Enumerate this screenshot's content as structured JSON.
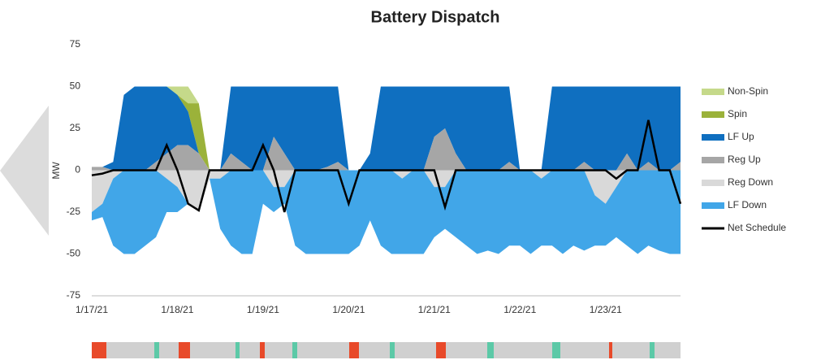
{
  "chart_data": {
    "type": "area",
    "title": "Battery Dispatch",
    "y_label": "MW",
    "categories": [
      "1/17/21",
      null,
      null,
      null,
      null,
      null,
      null,
      null,
      "1/18/21",
      null,
      null,
      null,
      null,
      null,
      null,
      null,
      "1/19/21",
      null,
      null,
      null,
      null,
      null,
      null,
      null,
      "1/20/21",
      null,
      null,
      null,
      null,
      null,
      null,
      null,
      "1/21/21",
      null,
      null,
      null,
      null,
      null,
      null,
      null,
      "1/22/21",
      null,
      null,
      null,
      null,
      null,
      null,
      null,
      "1/23/21",
      null,
      null,
      null,
      null,
      null,
      null,
      null
    ],
    "ylim": [
      -75,
      75
    ],
    "yticks": [
      -75,
      -50,
      -25,
      0,
      25,
      50,
      75
    ],
    "series": [
      {
        "name": "Non-Spin",
        "color": "#c5d98a",
        "values": [
          0,
          0,
          0,
          0,
          0,
          0,
          0,
          0,
          5,
          10,
          0,
          0,
          0,
          0,
          0,
          0,
          0,
          0,
          0,
          0,
          0,
          0,
          0,
          0,
          0,
          0,
          0,
          0,
          0,
          0,
          0,
          0,
          0,
          0,
          0,
          0,
          0,
          0,
          0,
          0,
          0,
          0,
          0,
          0,
          0,
          0,
          0,
          0,
          0,
          0,
          0,
          0,
          0,
          0,
          0,
          0
        ]
      },
      {
        "name": "Spin",
        "color": "#9bb23a",
        "values": [
          0,
          0,
          0,
          0,
          0,
          0,
          0,
          0,
          0,
          5,
          30,
          0,
          0,
          0,
          0,
          0,
          0,
          0,
          0,
          0,
          0,
          0,
          0,
          0,
          0,
          0,
          0,
          0,
          0,
          0,
          0,
          0,
          0,
          0,
          0,
          0,
          0,
          0,
          0,
          0,
          0,
          0,
          0,
          0,
          0,
          0,
          0,
          0,
          0,
          0,
          0,
          0,
          0,
          0,
          0,
          0
        ]
      },
      {
        "name": "LF Up",
        "color": "#0f6fc0",
        "values": [
          0,
          0,
          5,
          45,
          50,
          50,
          45,
          40,
          30,
          20,
          0,
          0,
          0,
          40,
          45,
          50,
          50,
          30,
          40,
          50,
          50,
          50,
          48,
          45,
          0,
          0,
          10,
          50,
          50,
          50,
          50,
          50,
          30,
          25,
          40,
          50,
          50,
          50,
          50,
          45,
          0,
          0,
          0,
          50,
          50,
          50,
          45,
          50,
          50,
          50,
          40,
          50,
          45,
          50,
          50,
          45
        ]
      },
      {
        "name": "Reg Up",
        "color": "#a6a6a6",
        "values": [
          2,
          2,
          0,
          0,
          0,
          0,
          5,
          10,
          15,
          15,
          10,
          0,
          0,
          10,
          5,
          0,
          0,
          20,
          10,
          0,
          0,
          0,
          2,
          5,
          0,
          0,
          0,
          0,
          0,
          0,
          0,
          0,
          20,
          25,
          10,
          0,
          0,
          0,
          0,
          5,
          0,
          0,
          0,
          0,
          0,
          0,
          5,
          0,
          0,
          0,
          10,
          0,
          5,
          0,
          0,
          5
        ]
      },
      {
        "name": "Reg Down",
        "color": "#d9d9d9",
        "values": [
          -25,
          -20,
          -5,
          0,
          0,
          0,
          0,
          -5,
          -10,
          -20,
          -25,
          -5,
          -5,
          0,
          0,
          0,
          0,
          -10,
          -10,
          0,
          0,
          0,
          0,
          0,
          0,
          0,
          0,
          0,
          0,
          -5,
          0,
          0,
          -10,
          -10,
          0,
          0,
          0,
          0,
          0,
          0,
          0,
          0,
          -5,
          0,
          0,
          0,
          0,
          -15,
          -20,
          -10,
          0,
          0,
          0,
          0,
          0,
          0
        ]
      },
      {
        "name": "LF Down",
        "color": "#41a6e8",
        "values": [
          -5,
          -8,
          -40,
          -50,
          -50,
          -45,
          -40,
          -20,
          -15,
          0,
          0,
          0,
          -30,
          -45,
          -50,
          -50,
          -20,
          -15,
          -10,
          -45,
          -50,
          -50,
          -50,
          -50,
          -50,
          -45,
          -30,
          -45,
          -50,
          -45,
          -50,
          -50,
          -30,
          -25,
          -40,
          -45,
          -50,
          -48,
          -50,
          -45,
          -45,
          -50,
          -40,
          -45,
          -50,
          -45,
          -48,
          -30,
          -25,
          -30,
          -45,
          -50,
          -45,
          -48,
          -50,
          -50
        ]
      },
      {
        "name": "Net Schedule",
        "type": "line",
        "color": "#000000",
        "values": [
          -3,
          -2,
          0,
          0,
          0,
          0,
          0,
          15,
          0,
          -20,
          -24,
          0,
          0,
          0,
          0,
          0,
          15,
          0,
          -25,
          0,
          0,
          0,
          0,
          0,
          -20,
          0,
          0,
          0,
          0,
          0,
          0,
          0,
          0,
          -22,
          0,
          0,
          0,
          0,
          0,
          0,
          0,
          0,
          0,
          0,
          0,
          0,
          0,
          0,
          0,
          -5,
          0,
          0,
          30,
          0,
          0,
          -20
        ]
      }
    ]
  }
}
